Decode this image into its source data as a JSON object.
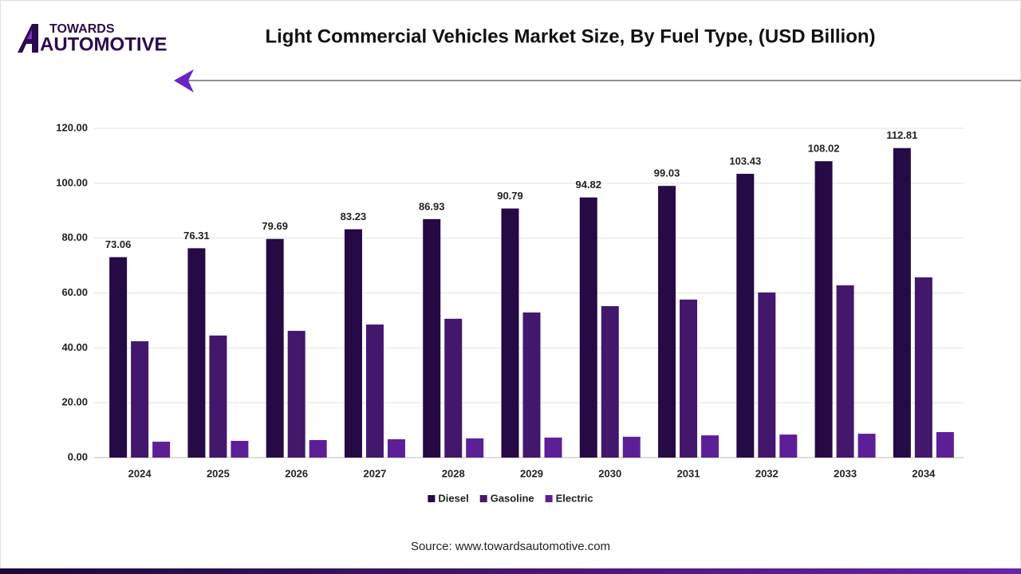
{
  "logo": {
    "top": "TOWARDS",
    "bottom": "AUTOMOTIVE"
  },
  "chart_data": {
    "type": "bar",
    "title": "Light Commercial Vehicles Market Size, By Fuel Type, (USD Billion)",
    "source": "Source: www.towardsautomotive.com",
    "categories": [
      "2024",
      "2025",
      "2026",
      "2027",
      "2028",
      "2029",
      "2030",
      "2031",
      "2032",
      "2033",
      "2034"
    ],
    "series": [
      {
        "name": "Diesel",
        "color": "#250a45",
        "values": [
          73.06,
          76.31,
          79.69,
          83.23,
          86.93,
          90.79,
          94.82,
          99.03,
          103.43,
          108.02,
          112.81
        ],
        "labels": true
      },
      {
        "name": "Gasoline",
        "color": "#43176b",
        "values": [
          42.4,
          44.5,
          46.2,
          48.5,
          50.6,
          52.9,
          55.2,
          57.6,
          60.2,
          62.8,
          65.7
        ]
      },
      {
        "name": "Electric",
        "color": "#5d1f96",
        "values": [
          5.8,
          6.1,
          6.4,
          6.7,
          7.0,
          7.3,
          7.6,
          8.1,
          8.4,
          8.7,
          9.3
        ]
      }
    ],
    "ylim": [
      0,
      120
    ],
    "yticks": [
      {
        "value": 0,
        "label": "0.00"
      },
      {
        "value": 20,
        "label": "20.00"
      },
      {
        "value": 40,
        "label": "40.00"
      },
      {
        "value": 60,
        "label": "60.00"
      },
      {
        "value": 80,
        "label": "80.00"
      },
      {
        "value": 100,
        "label": "100.00"
      },
      {
        "value": 120,
        "label": "120.00"
      }
    ],
    "grid": true,
    "legend": "bottom"
  }
}
